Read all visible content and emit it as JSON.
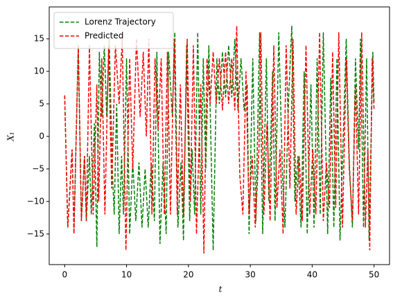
{
  "chart_data": {
    "type": "line",
    "x_label": "t",
    "y_label": "X₁",
    "xlim": [
      -2.5,
      52.5
    ],
    "ylim": [
      -19.7,
      19.9
    ],
    "xticks": [
      0,
      10,
      20,
      30,
      40,
      50
    ],
    "yticks": [
      {
        "value": -15,
        "label": "−15"
      },
      {
        "value": -10,
        "label": "−10"
      },
      {
        "value": -5,
        "label": "−5"
      },
      0,
      5,
      10,
      15
    ],
    "legend": "upper left",
    "series": [
      {
        "name": "Lorenz Trajectory",
        "color": "#008000",
        "x": [
          0,
          0.5,
          1.2,
          1.5,
          2.2,
          2.7,
          3.2,
          3.5,
          4,
          4.3,
          4.8,
          5.2,
          5.6,
          6,
          6.4,
          6.8,
          7.2,
          7.7,
          8,
          8.4,
          8.8,
          9.2,
          9.5,
          10,
          10.5,
          11,
          11.5,
          12,
          12.5,
          13,
          13.5,
          14,
          14.5,
          14.9,
          15.4,
          15.9,
          16.4,
          16.8,
          17.4,
          17.8,
          18.3,
          18.8,
          19.2,
          19.7,
          20.2,
          20.6,
          21,
          21.5,
          22,
          22.4,
          22.8,
          23.3,
          24,
          24.6,
          25,
          25.5,
          26,
          26.5,
          27,
          27.5,
          28,
          28.5,
          29,
          29.5,
          29.8,
          30.4,
          30.9,
          31.5,
          32,
          32.6,
          33,
          33.6,
          34,
          34.6,
          35.2,
          35.6,
          36.2,
          36.7,
          37.2,
          37.7,
          38.2,
          38.7,
          39.2,
          39.8,
          40.3,
          40.8,
          41.3,
          41.8,
          42.5,
          43,
          43.5,
          44,
          44.5,
          45.5,
          46,
          46.5,
          47,
          47.5,
          47.8,
          48.3,
          48.8,
          49.2,
          49.8,
          50
        ],
        "values": [
          6.3,
          -14,
          -2,
          -14.5,
          14,
          -13,
          -3,
          -13,
          -3,
          -12,
          2,
          -17,
          13,
          3,
          14,
          3,
          15,
          -5,
          -12,
          5,
          -15,
          -3,
          -12,
          12,
          -15,
          -4,
          -13,
          -4,
          -14,
          -5,
          -14,
          -4,
          -13,
          13,
          -16.5,
          -4,
          -15,
          13,
          3,
          16,
          -14,
          -4,
          -16,
          14,
          -13,
          -2,
          -12,
          16,
          -12,
          12,
          -5,
          14,
          -17.5,
          12,
          5,
          13,
          6,
          14,
          6,
          15,
          4,
          12,
          4,
          8,
          -15,
          12,
          -13,
          16,
          -15,
          12,
          -10,
          10,
          -13,
          16,
          -6,
          -14,
          6,
          17,
          -10,
          -3,
          -14,
          10,
          -15,
          8,
          -14,
          12,
          -12,
          16,
          -15,
          9,
          -14,
          12,
          -16,
          15,
          -4,
          -14,
          12,
          -2,
          15,
          -14,
          12,
          -16,
          13,
          5
        ]
      },
      {
        "name": "Predicted",
        "color": "#ff0000",
        "x": [
          0,
          0.5,
          1.2,
          1.5,
          2.2,
          2.7,
          3.2,
          3.5,
          4,
          4.6,
          5.2,
          5.5,
          6,
          6.5,
          7.1,
          7.6,
          8.2,
          8.8,
          9.3,
          9.9,
          10.5,
          11,
          11.6,
          12.2,
          12.7,
          13.2,
          13.6,
          14.1,
          14.6,
          15.1,
          15.6,
          16.1,
          16.6,
          17.1,
          17.7,
          18.2,
          18.7,
          19.2,
          19.8,
          20.3,
          20.8,
          21.3,
          22,
          22.5,
          23,
          23.5,
          24,
          24.5,
          25,
          25.5,
          26,
          26.5,
          27,
          27.5,
          27.8,
          28.3,
          28.8,
          29.3,
          29.8,
          30.3,
          30.8,
          31.4,
          31.7,
          32.2,
          32.7,
          33.2,
          33.8,
          34.3,
          34.8,
          35.3,
          35.8,
          36.4,
          36.9,
          37.4,
          37.9,
          38.4,
          39,
          39.6,
          40.1,
          40.6,
          41.2,
          41.8,
          42.3,
          42.8,
          43.3,
          43.8,
          44.3,
          44.9,
          45.5,
          46,
          46.5,
          47,
          47.5,
          48,
          48.6,
          49,
          49.3,
          49.7,
          50
        ],
        "values": [
          6.3,
          -14,
          -2,
          -15,
          14,
          -13,
          -3,
          -13,
          14,
          -12,
          8,
          -10,
          12,
          -12,
          14,
          -8,
          14,
          5,
          15,
          -17.5,
          12,
          -5,
          15,
          3,
          13,
          0,
          15,
          -12,
          12,
          1,
          12,
          -12,
          13,
          -12,
          15,
          -12,
          8,
          -12,
          15,
          -10,
          14,
          -15,
          8,
          -18,
          12,
          5,
          13,
          5,
          12,
          4,
          13,
          5,
          12,
          4,
          17,
          -6,
          -12,
          10,
          -12,
          -3,
          -14,
          -2,
          16,
          -12,
          2,
          -13,
          14,
          -11,
          -2,
          -15,
          14,
          -8,
          15,
          -12,
          -3,
          -13,
          14,
          -12,
          -2,
          -12,
          16,
          -13,
          -4,
          -11,
          13,
          -11,
          16,
          -14,
          12,
          -5,
          -13,
          8,
          -12,
          16,
          -14,
          -2,
          -17.5,
          12,
          4
        ]
      }
    ]
  }
}
